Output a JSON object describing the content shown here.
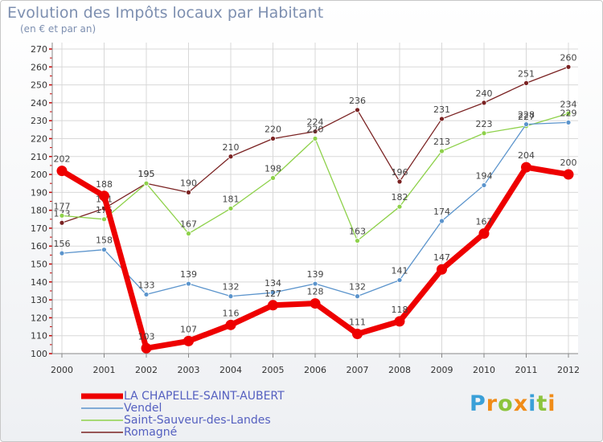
{
  "brand": {
    "text": "Proxiti",
    "letters": [
      "P",
      "r",
      "o",
      "x",
      "i",
      "t",
      "i"
    ]
  },
  "chart_data": {
    "type": "line",
    "title": "Evolution des Impôts locaux par Habitant",
    "subtitle": "(en € et par an)",
    "x": [
      "2000",
      "2001",
      "2002",
      "2003",
      "2004",
      "2005",
      "2006",
      "2007",
      "2008",
      "2009",
      "2010",
      "2011",
      "2012"
    ],
    "ylim": [
      100,
      270
    ],
    "yticks": [
      100,
      110,
      120,
      130,
      140,
      150,
      160,
      170,
      180,
      190,
      200,
      210,
      220,
      230,
      240,
      250,
      260,
      270
    ],
    "grid": true,
    "legend_position": "bottom-left",
    "series": [
      {
        "name": "Romagné",
        "color": "#7a2222",
        "values": [
          173,
          181,
          195,
          190,
          210,
          220,
          224,
          236,
          196,
          231,
          240,
          251,
          260
        ]
      },
      {
        "name": "Saint-Sauveur-des-Landes",
        "color": "#8ed14a",
        "values": [
          177,
          175,
          195,
          167,
          181,
          198,
          220,
          163,
          182,
          213,
          223,
          227,
          234
        ]
      },
      {
        "name": "Vendel",
        "color": "#5b94cc",
        "values": [
          156,
          158,
          133,
          139,
          132,
          134,
          139,
          132,
          141,
          174,
          194,
          228,
          229
        ]
      },
      {
        "name": "LA CHAPELLE-SAINT-AUBERT",
        "color": "#ee0000",
        "values": [
          202,
          188,
          103,
          107,
          116,
          127,
          128,
          111,
          118,
          147,
          167,
          204,
          200
        ]
      }
    ],
    "legend_order": [
      "LA CHAPELLE-SAINT-AUBERT",
      "Vendel",
      "Saint-Sauveur-des-Landes",
      "Romagné"
    ]
  }
}
